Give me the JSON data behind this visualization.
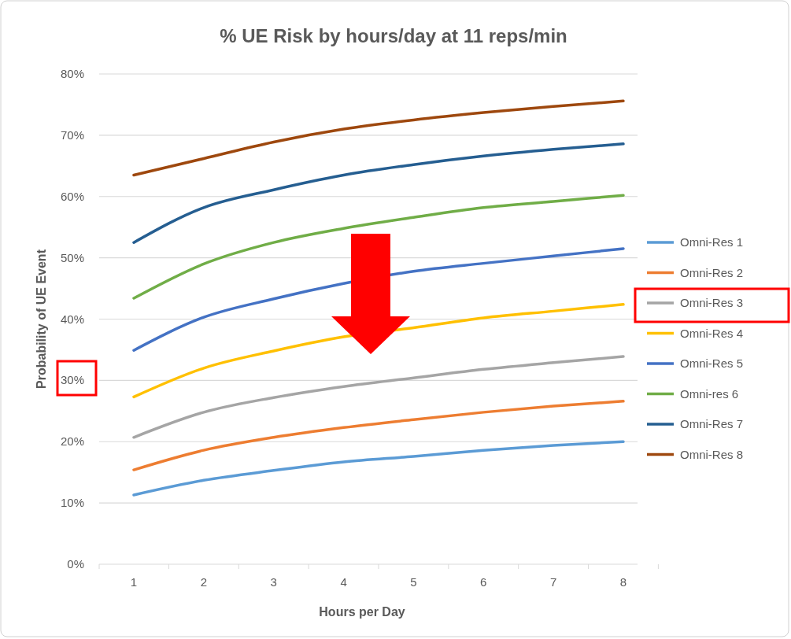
{
  "chart_data": {
    "type": "line",
    "title": "% UE Risk by hours/day at 11 reps/min",
    "xlabel": "Hours per Day",
    "ylabel": "Probability of UE Event",
    "categories": [
      "1",
      "2",
      "3",
      "4",
      "5",
      "6",
      "7",
      "8"
    ],
    "ylim": [
      0,
      80
    ],
    "yticks": [
      {
        "value": 0,
        "label": "0%"
      },
      {
        "value": 10,
        "label": "10%"
      },
      {
        "value": 20,
        "label": "20%"
      },
      {
        "value": 30,
        "label": "30%"
      },
      {
        "value": 40,
        "label": "40%"
      },
      {
        "value": 50,
        "label": "50%"
      },
      {
        "value": 60,
        "label": "60%"
      },
      {
        "value": 70,
        "label": "70%"
      },
      {
        "value": 80,
        "label": "80%"
      }
    ],
    "grid": "y",
    "legend": "right",
    "marker": "none",
    "line_style": "solid",
    "series": [
      {
        "name": "Omni-Res 1",
        "color": "#5b9bd5",
        "values": [
          11.3,
          13.7,
          15.3,
          16.7,
          17.6,
          18.6,
          19.4,
          20.0
        ]
      },
      {
        "name": "Omni-Res 2",
        "color": "#ed7d31",
        "values": [
          15.4,
          18.6,
          20.7,
          22.3,
          23.6,
          24.8,
          25.8,
          26.6
        ]
      },
      {
        "name": "Omni-Res 3",
        "color": "#a5a5a5",
        "values": [
          20.7,
          24.8,
          27.2,
          29.0,
          30.4,
          31.8,
          32.9,
          33.9
        ]
      },
      {
        "name": "Omni-Res 4",
        "color": "#ffc000",
        "values": [
          27.3,
          32.0,
          34.8,
          37.1,
          38.6,
          40.2,
          41.3,
          42.4
        ]
      },
      {
        "name": "Omni-Res 5",
        "color": "#4472c4",
        "values": [
          34.9,
          40.3,
          43.3,
          45.8,
          47.8,
          49.1,
          50.3,
          51.5
        ]
      },
      {
        "name": "Omni-res 6",
        "color": "#70ad47",
        "values": [
          43.4,
          49.0,
          52.5,
          54.8,
          56.6,
          58.2,
          59.2,
          60.2
        ]
      },
      {
        "name": "Omni-Res 7",
        "color": "#255e91",
        "values": [
          52.5,
          58.2,
          61.1,
          63.5,
          65.2,
          66.6,
          67.7,
          68.6
        ]
      },
      {
        "name": "Omni-Res 8",
        "color": "#9e480e",
        "values": [
          63.5,
          66.2,
          68.9,
          71.0,
          72.5,
          73.7,
          74.7,
          75.6
        ]
      }
    ]
  }
}
